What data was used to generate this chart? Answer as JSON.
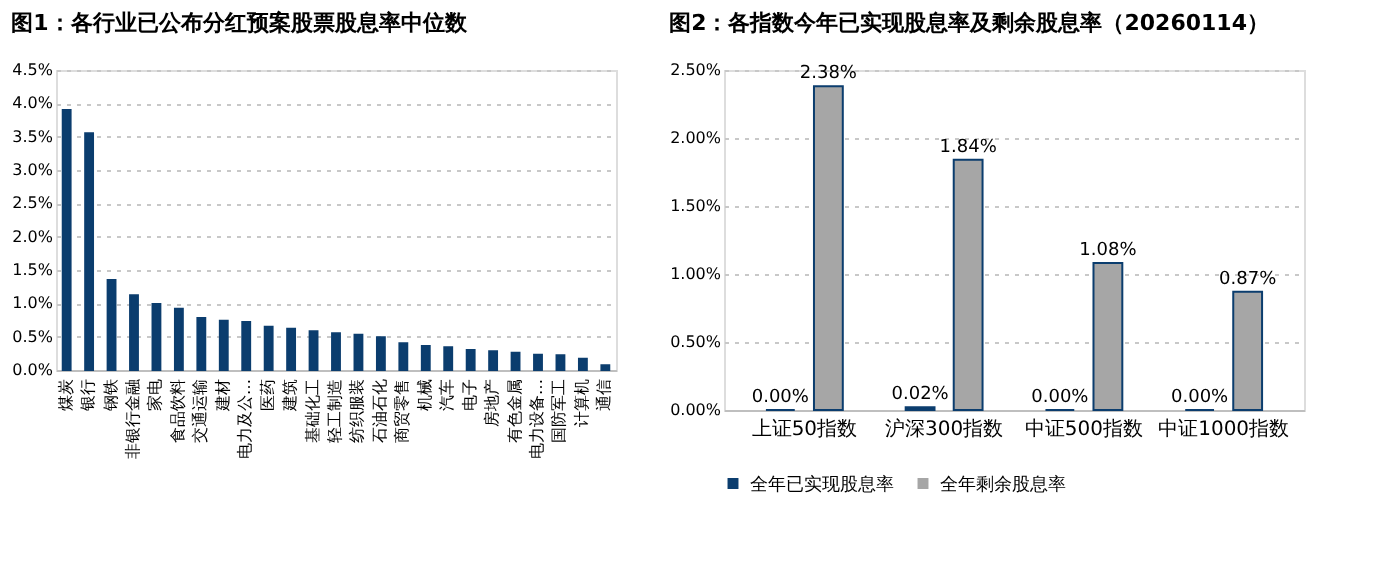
{
  "chart_data": [
    {
      "type": "bar",
      "title": "图1：各行业已公布分红预案股票股息率中位数",
      "categories": [
        "煤炭",
        "银行",
        "钢铁",
        "非银行金融",
        "家电",
        "食品饮料",
        "交通运输",
        "建材",
        "电力及公…",
        "医药",
        "建筑",
        "基础化工",
        "轻工制造",
        "纺织服装",
        "石油石化",
        "商贸零售",
        "机械",
        "汽车",
        "电子",
        "房地产",
        "有色金属",
        "电力设备…",
        "国防军工",
        "计算机",
        "通信"
      ],
      "series": [
        {
          "color": "#0b3d6e",
          "values": [
            3.9,
            3.55,
            1.35,
            1.12,
            0.99,
            0.92,
            0.78,
            0.74,
            0.72,
            0.65,
            0.62,
            0.58,
            0.55,
            0.53,
            0.49,
            0.4,
            0.36,
            0.34,
            0.3,
            0.28,
            0.26,
            0.23,
            0.22,
            0.17,
            0.07
          ]
        }
      ],
      "ylim": [
        0,
        4.5
      ],
      "yticks": [
        {
          "value": 0,
          "label": "0.0%"
        },
        {
          "value": 0.5,
          "label": "0.5%"
        },
        {
          "value": 1,
          "label": "1.0%"
        },
        {
          "value": 1.5,
          "label": "1.5%"
        },
        {
          "value": 2,
          "label": "2.0%"
        },
        {
          "value": 2.5,
          "label": "2.5%"
        },
        {
          "value": 3,
          "label": "3.0%"
        },
        {
          "value": 3.5,
          "label": "3.5%"
        },
        {
          "value": 4,
          "label": "4.0%"
        },
        {
          "value": 4.5,
          "label": "4.5%"
        }
      ],
      "grid": "y",
      "legend": false
    },
    {
      "type": "bar",
      "title": "图2：各指数今年已实现股息率及剩余股息率（20260114）",
      "categories": [
        "上证50指数",
        "沪深300指数",
        "中证500指数",
        "中证1000指数"
      ],
      "series": [
        {
          "name": "全年已实现股息率",
          "color": "#0b3d6e",
          "values": [
            0,
            0.02,
            0,
            0
          ],
          "value_labels": [
            "0.00%",
            "0.02%",
            "0.00%",
            "0.00%"
          ]
        },
        {
          "name": "全年剩余股息率",
          "color": "#a6a6a6",
          "values": [
            2.38,
            1.84,
            1.08,
            0.87
          ],
          "value_labels": [
            "2.38%",
            "1.84%",
            "1.08%",
            "0.87%"
          ]
        }
      ],
      "ylim": [
        0,
        2.5
      ],
      "yticks": [
        {
          "value": 0,
          "label": "0.00%"
        },
        {
          "value": 0.5,
          "label": "0.50%"
        },
        {
          "value": 1,
          "label": "1.00%"
        },
        {
          "value": 1.5,
          "label": "1.50%"
        },
        {
          "value": 2,
          "label": "2.00%"
        },
        {
          "value": 2.5,
          "label": "2.50%"
        }
      ],
      "grid": "y",
      "legend": "bottom"
    }
  ]
}
